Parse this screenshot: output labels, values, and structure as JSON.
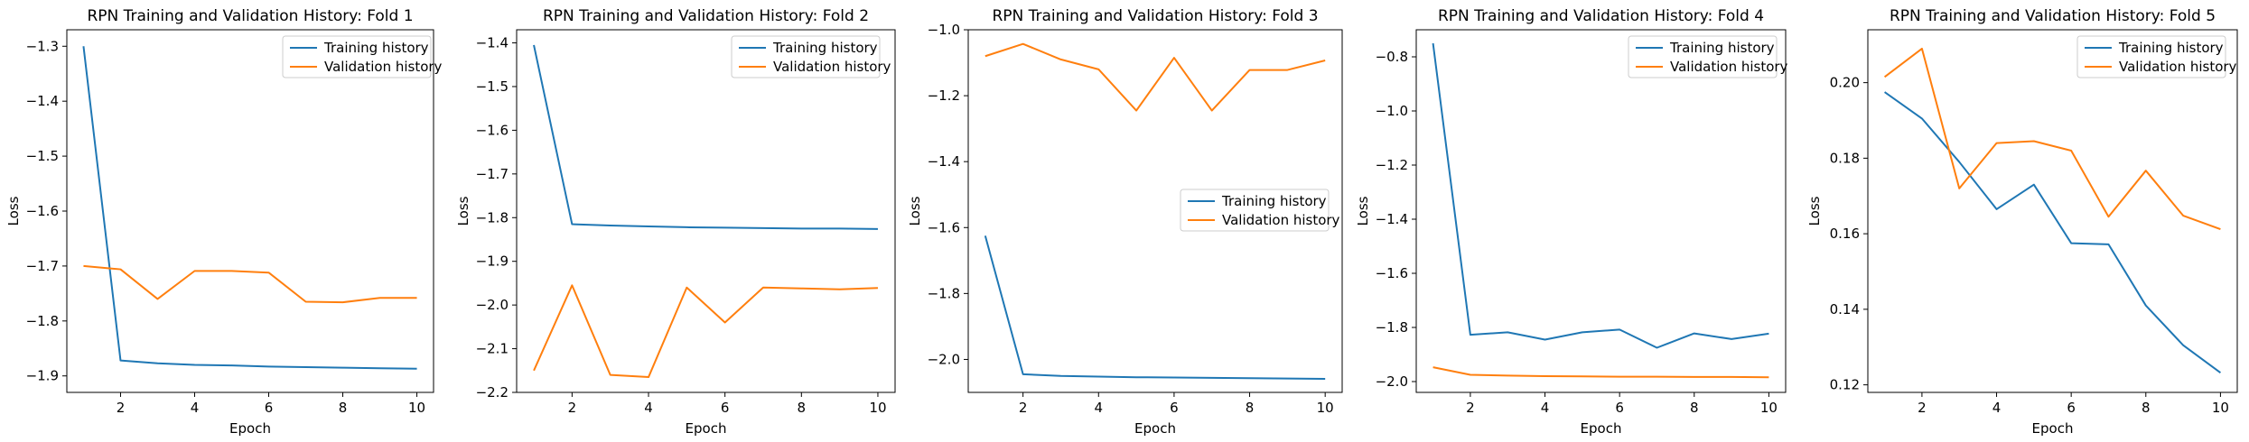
{
  "chart_data": [
    {
      "type": "line",
      "title": "RPN Training and Validation History: Fold 1",
      "xlabel": "Epoch",
      "ylabel": "Loss",
      "xlim": [
        0.55,
        10.45
      ],
      "ylim": [
        -1.93,
        -1.27
      ],
      "xticks": [
        2,
        4,
        6,
        8,
        10
      ],
      "xtick_labels": [
        "2",
        "4",
        "6",
        "8",
        "10"
      ],
      "yticks": [
        -1.9,
        -1.8,
        -1.7,
        -1.6,
        -1.5,
        -1.4,
        -1.3
      ],
      "ytick_labels": [
        "−1.9",
        "−1.8",
        "−1.7",
        "−1.6",
        "−1.5",
        "−1.4",
        "−1.3"
      ],
      "legend_position": "top-right",
      "grid": false,
      "x": [
        1,
        2,
        3,
        4,
        5,
        6,
        7,
        8,
        9,
        10
      ],
      "series": [
        {
          "name": "Training history",
          "color": "#1f77b4",
          "values": [
            -1.3,
            -1.872,
            -1.877,
            -1.88,
            -1.881,
            -1.883,
            -1.884,
            -1.885,
            -1.886,
            -1.887
          ]
        },
        {
          "name": "Validation history",
          "color": "#ff7f0e",
          "values": [
            -1.7,
            -1.706,
            -1.76,
            -1.709,
            -1.709,
            -1.712,
            -1.765,
            -1.766,
            -1.758,
            -1.758
          ]
        }
      ]
    },
    {
      "type": "line",
      "title": "RPN Training and Validation History: Fold 2",
      "xlabel": "Epoch",
      "ylabel": "Loss",
      "xlim": [
        0.55,
        10.45
      ],
      "ylim": [
        -2.2,
        -1.37
      ],
      "xticks": [
        2,
        4,
        6,
        8,
        10
      ],
      "xtick_labels": [
        "2",
        "4",
        "6",
        "8",
        "10"
      ],
      "yticks": [
        -2.2,
        -2.1,
        -2.0,
        -1.9,
        -1.8,
        -1.7,
        -1.6,
        -1.5,
        -1.4
      ],
      "ytick_labels": [
        "−2.2",
        "−2.1",
        "−2.0",
        "−1.9",
        "−1.8",
        "−1.7",
        "−1.6",
        "−1.5",
        "−1.4"
      ],
      "legend_position": "top-right",
      "grid": false,
      "x": [
        1,
        2,
        3,
        4,
        5,
        6,
        7,
        8,
        9,
        10
      ],
      "series": [
        {
          "name": "Training history",
          "color": "#1f77b4",
          "values": [
            -1.405,
            -1.815,
            -1.818,
            -1.82,
            -1.822,
            -1.823,
            -1.824,
            -1.825,
            -1.825,
            -1.826
          ]
        },
        {
          "name": "Validation history",
          "color": "#ff7f0e",
          "values": [
            -2.15,
            -1.955,
            -2.16,
            -2.165,
            -1.96,
            -2.04,
            -1.96,
            -1.962,
            -1.964,
            -1.961
          ]
        }
      ]
    },
    {
      "type": "line",
      "title": "RPN Training and Validation History: Fold 3",
      "xlabel": "Epoch",
      "ylabel": "Loss",
      "xlim": [
        0.55,
        10.45
      ],
      "ylim": [
        -2.1,
        -1.0
      ],
      "xticks": [
        2,
        4,
        6,
        8,
        10
      ],
      "xtick_labels": [
        "2",
        "4",
        "6",
        "8",
        "10"
      ],
      "yticks": [
        -2.0,
        -1.8,
        -1.6,
        -1.4,
        -1.2,
        -1.0
      ],
      "ytick_labels": [
        "−2.0",
        "−1.8",
        "−1.6",
        "−1.4",
        "−1.2",
        "−1.0"
      ],
      "legend_position": "center-right",
      "grid": false,
      "x": [
        1,
        2,
        3,
        4,
        5,
        6,
        7,
        8,
        9,
        10
      ],
      "series": [
        {
          "name": "Training history",
          "color": "#1f77b4",
          "values": [
            -1.625,
            -2.045,
            -2.05,
            -2.052,
            -2.054,
            -2.055,
            -2.056,
            -2.057,
            -2.058,
            -2.059
          ]
        },
        {
          "name": "Validation history",
          "color": "#ff7f0e",
          "values": [
            -1.08,
            -1.043,
            -1.09,
            -1.12,
            -1.245,
            -1.085,
            -1.245,
            -1.122,
            -1.122,
            -1.093
          ]
        }
      ]
    },
    {
      "type": "line",
      "title": "RPN Training and Validation History: Fold 4",
      "xlabel": "Epoch",
      "ylabel": "Loss",
      "xlim": [
        0.55,
        10.45
      ],
      "ylim": [
        -2.04,
        -0.7
      ],
      "xticks": [
        2,
        4,
        6,
        8,
        10
      ],
      "xtick_labels": [
        "2",
        "4",
        "6",
        "8",
        "10"
      ],
      "yticks": [
        -2.0,
        -1.8,
        -1.6,
        -1.4,
        -1.2,
        -1.0,
        -0.8
      ],
      "ytick_labels": [
        "−2.0",
        "−1.8",
        "−1.6",
        "−1.4",
        "−1.2",
        "−1.0",
        "−0.8"
      ],
      "legend_position": "top-right",
      "grid": false,
      "x": [
        1,
        2,
        3,
        4,
        5,
        6,
        7,
        8,
        9,
        10
      ],
      "series": [
        {
          "name": "Training history",
          "color": "#1f77b4",
          "values": [
            -0.75,
            -1.827,
            -1.818,
            -1.845,
            -1.818,
            -1.808,
            -1.875,
            -1.822,
            -1.843,
            -1.823
          ]
        },
        {
          "name": "Validation history",
          "color": "#ff7f0e",
          "values": [
            -1.947,
            -1.975,
            -1.978,
            -1.98,
            -1.981,
            -1.982,
            -1.982,
            -1.983,
            -1.983,
            -1.984
          ]
        }
      ]
    },
    {
      "type": "line",
      "title": "RPN Training and Validation History: Fold 5",
      "xlabel": "Epoch",
      "ylabel": "Loss",
      "xlim": [
        0.55,
        10.45
      ],
      "ylim": [
        0.118,
        0.214
      ],
      "xticks": [
        2,
        4,
        6,
        8,
        10
      ],
      "xtick_labels": [
        "2",
        "4",
        "6",
        "8",
        "10"
      ],
      "yticks": [
        0.12,
        0.14,
        0.16,
        0.18,
        0.2
      ],
      "ytick_labels": [
        "0.12",
        "0.14",
        "0.16",
        "0.18",
        "0.20"
      ],
      "legend_position": "top-right",
      "grid": false,
      "x": [
        1,
        2,
        3,
        4,
        5,
        6,
        7,
        8,
        9,
        10
      ],
      "series": [
        {
          "name": "Training history",
          "color": "#1f77b4",
          "values": [
            0.1975,
            0.1905,
            0.179,
            0.1665,
            0.173,
            0.1575,
            0.1572,
            0.141,
            0.1305,
            0.1232
          ]
        },
        {
          "name": "Validation history",
          "color": "#ff7f0e",
          "values": [
            0.2015,
            0.209,
            0.172,
            0.184,
            0.1845,
            0.182,
            0.1645,
            0.1767,
            0.1648,
            0.1612
          ]
        }
      ]
    }
  ]
}
